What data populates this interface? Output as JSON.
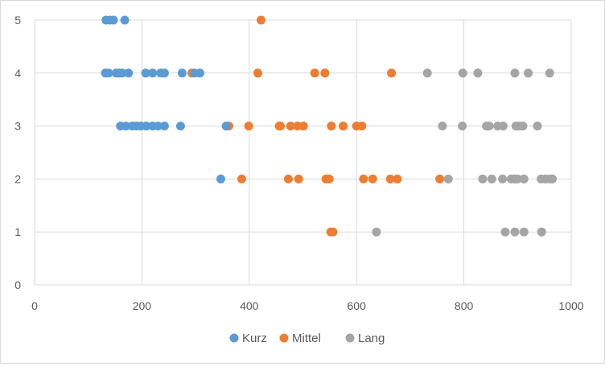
{
  "chart_data": {
    "type": "scatter",
    "xlim": [
      0,
      1000
    ],
    "ylim": [
      0,
      5
    ],
    "x_ticks": [
      "0",
      "200",
      "400",
      "600",
      "800",
      "1000"
    ],
    "y_ticks": [
      "0",
      "1",
      "2",
      "3",
      "4",
      "5"
    ],
    "grid": "major vertical and horizontal gridlines",
    "legend_position": "bottom",
    "series": [
      {
        "name": "Kurz",
        "color": "#5B9BD5",
        "points": [
          [
            133,
            5
          ],
          [
            140,
            5
          ],
          [
            147,
            5
          ],
          [
            168,
            5
          ],
          [
            132,
            4
          ],
          [
            138,
            4
          ],
          [
            152,
            4
          ],
          [
            158,
            4
          ],
          [
            163,
            4
          ],
          [
            175,
            4
          ],
          [
            207,
            4
          ],
          [
            220,
            4
          ],
          [
            235,
            4
          ],
          [
            242,
            4
          ],
          [
            275,
            4
          ],
          [
            298,
            4
          ],
          [
            308,
            4
          ],
          [
            160,
            3
          ],
          [
            170,
            3
          ],
          [
            182,
            3
          ],
          [
            190,
            3
          ],
          [
            198,
            3
          ],
          [
            208,
            3
          ],
          [
            220,
            3
          ],
          [
            230,
            3
          ],
          [
            242,
            3
          ],
          [
            272,
            3
          ],
          [
            357,
            3
          ],
          [
            347,
            2
          ]
        ]
      },
      {
        "name": "Mittel",
        "color": "#ED7D31",
        "points": [
          [
            422,
            5
          ],
          [
            293,
            4
          ],
          [
            416,
            4
          ],
          [
            522,
            4
          ],
          [
            541,
            4
          ],
          [
            665,
            4
          ],
          [
            362,
            3
          ],
          [
            399,
            3
          ],
          [
            456,
            3
          ],
          [
            458,
            3
          ],
          [
            477,
            3
          ],
          [
            490,
            3
          ],
          [
            501,
            3
          ],
          [
            553,
            3
          ],
          [
            575,
            3
          ],
          [
            600,
            3
          ],
          [
            610,
            3
          ],
          [
            386,
            2
          ],
          [
            473,
            2
          ],
          [
            492,
            2
          ],
          [
            543,
            2
          ],
          [
            549,
            2
          ],
          [
            613,
            2
          ],
          [
            630,
            2
          ],
          [
            663,
            2
          ],
          [
            676,
            2
          ],
          [
            755,
            2
          ],
          [
            552,
            1
          ],
          [
            556,
            1
          ]
        ]
      },
      {
        "name": "Lang",
        "color": "#A5A5A5",
        "points": [
          [
            732,
            4
          ],
          [
            798,
            4
          ],
          [
            826,
            4
          ],
          [
            895,
            4
          ],
          [
            920,
            4
          ],
          [
            960,
            4
          ],
          [
            760,
            3
          ],
          [
            797,
            3
          ],
          [
            842,
            3
          ],
          [
            847,
            3
          ],
          [
            863,
            3
          ],
          [
            873,
            3
          ],
          [
            897,
            3
          ],
          [
            903,
            3
          ],
          [
            910,
            3
          ],
          [
            937,
            3
          ],
          [
            771,
            2
          ],
          [
            835,
            2
          ],
          [
            852,
            2
          ],
          [
            872,
            2
          ],
          [
            888,
            2
          ],
          [
            895,
            2
          ],
          [
            900,
            2
          ],
          [
            912,
            2
          ],
          [
            944,
            2
          ],
          [
            952,
            2
          ],
          [
            960,
            2
          ],
          [
            965,
            2
          ],
          [
            637,
            1
          ],
          [
            877,
            1
          ],
          [
            895,
            1
          ],
          [
            912,
            1
          ],
          [
            945,
            1
          ]
        ]
      }
    ]
  }
}
